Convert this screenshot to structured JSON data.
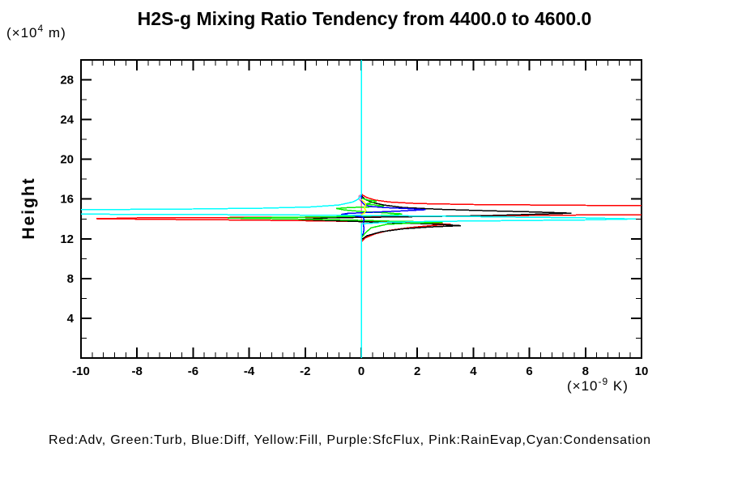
{
  "title": "H2S-g Mixing Ratio Tendency from 4400.0 to 4600.0",
  "y_axis_label": "Height",
  "y_axis_unit": {
    "base": "(×10",
    "sup": "4",
    "rest": " m)"
  },
  "x_axis_unit": {
    "base": "(×10",
    "sup": "-9",
    "rest": " K)"
  },
  "legend_text": "Red:Adv, Green:Turb, Blue:Diff, Yellow:Fill, Purple:SfcFlux, Pink:RainEvap,Cyan:Condensation",
  "colors": {
    "red": "#ff0000",
    "green": "#00ee00",
    "blue": "#0000ff",
    "yellow": "#ffff00",
    "purple": "#a020f0",
    "pink": "#ff69b4",
    "cyan": "#00ffff",
    "black": "#000000",
    "axis": "#000000",
    "background": "#ffffff"
  },
  "chart_data": {
    "type": "line",
    "title": "H2S-g Mixing Ratio Tendency from 4400.0 to 4600.0",
    "xlabel": "(×10⁻⁹ K)",
    "ylabel": "Height (×10⁴ m)",
    "xlim": [
      -10,
      10
    ],
    "ylim": [
      0,
      30
    ],
    "grid": false,
    "legend_position": "bottom",
    "x_ticks": [
      -10,
      -8,
      -6,
      -4,
      -2,
      0,
      2,
      4,
      6,
      8,
      10
    ],
    "x_tick_labels": [
      "-10",
      "-8",
      "-6",
      "-4",
      "-2",
      "0",
      "2",
      "4",
      "6",
      "8",
      "10"
    ],
    "x_minor_step": 0.4,
    "y_ticks": [
      4,
      8,
      12,
      16,
      20,
      24,
      28
    ],
    "y_tick_labels": [
      "4",
      "8",
      "12",
      "16",
      "20",
      "24",
      "28"
    ],
    "y_ticks_minor": [
      2,
      6,
      10,
      14,
      18,
      22,
      26,
      30
    ],
    "series": [
      {
        "name": "SfcFlux",
        "color": "#a020f0",
        "points": [
          [
            0,
            0
          ],
          [
            0,
            30
          ]
        ]
      },
      {
        "name": "RainEvap",
        "color": "#ff69b4",
        "points": [
          [
            0,
            0
          ],
          [
            0,
            15.75
          ],
          [
            -0.07,
            15.95
          ],
          [
            -0.08,
            16.3
          ],
          [
            0,
            16.45
          ],
          [
            0,
            30
          ]
        ]
      },
      {
        "name": "Adv",
        "color": "#ff0000",
        "points": [
          [
            0,
            0
          ],
          [
            0,
            11.7
          ],
          [
            0.15,
            12.1
          ],
          [
            0.5,
            12.5
          ],
          [
            1.0,
            12.85
          ],
          [
            1.8,
            13.15
          ],
          [
            2.6,
            13.35
          ],
          [
            3.2,
            13.45
          ],
          [
            2.2,
            13.6
          ],
          [
            0.5,
            13.72
          ],
          [
            -1.5,
            13.8
          ],
          [
            -4.0,
            13.88
          ],
          [
            -7.0,
            13.95
          ],
          [
            -9.45,
            14.02
          ],
          [
            -8.0,
            14.1
          ],
          [
            -4.0,
            14.15
          ],
          [
            0,
            14.2
          ],
          [
            4,
            14.3
          ],
          [
            8,
            14.4
          ],
          [
            13,
            14.45
          ],
          [
            13,
            15.3
          ],
          [
            8,
            15.37
          ],
          [
            4,
            15.45
          ],
          [
            2,
            15.55
          ],
          [
            1.0,
            15.7
          ],
          [
            0.5,
            15.9
          ],
          [
            0.2,
            16.15
          ],
          [
            0.05,
            16.4
          ],
          [
            0,
            16.55
          ],
          [
            0,
            30
          ]
        ]
      },
      {
        "name": "black",
        "color": "#000000",
        "points": [
          [
            0,
            0
          ],
          [
            0,
            11.9
          ],
          [
            0.2,
            12.3
          ],
          [
            0.7,
            12.7
          ],
          [
            1.5,
            13.0
          ],
          [
            2.5,
            13.2
          ],
          [
            3.55,
            13.32
          ],
          [
            2.5,
            13.5
          ],
          [
            1.0,
            13.62
          ],
          [
            -0.5,
            13.78
          ],
          [
            -2.2,
            13.95
          ],
          [
            -1.2,
            14.1
          ],
          [
            0.5,
            14.18
          ],
          [
            2.5,
            14.25
          ],
          [
            4.5,
            14.33
          ],
          [
            6.0,
            14.45
          ],
          [
            7.5,
            14.58
          ],
          [
            6.2,
            14.7
          ],
          [
            4.5,
            14.82
          ],
          [
            2.8,
            14.97
          ],
          [
            1.5,
            15.15
          ],
          [
            0.8,
            15.4
          ],
          [
            0.4,
            15.65
          ],
          [
            0.15,
            15.95
          ],
          [
            0.05,
            16.2
          ],
          [
            0,
            16.4
          ],
          [
            0,
            30
          ]
        ]
      },
      {
        "name": "Turb",
        "color": "#00ee00",
        "points": [
          [
            0,
            0
          ],
          [
            0,
            12.1
          ],
          [
            0.15,
            12.6
          ],
          [
            0.35,
            13.1
          ],
          [
            0.9,
            13.45
          ],
          [
            1.8,
            13.58
          ],
          [
            2.9,
            13.63
          ],
          [
            2.2,
            13.72
          ],
          [
            1.0,
            13.78
          ],
          [
            0,
            13.85
          ],
          [
            -1.5,
            13.95
          ],
          [
            -3.2,
            14.02
          ],
          [
            -4.77,
            14.08
          ],
          [
            -3.0,
            14.15
          ],
          [
            -1.0,
            14.22
          ],
          [
            0.3,
            14.3
          ],
          [
            1.1,
            14.4
          ],
          [
            1.45,
            14.5
          ],
          [
            0.8,
            14.62
          ],
          [
            0,
            14.75
          ],
          [
            -0.6,
            14.9
          ],
          [
            -0.9,
            15.05
          ],
          [
            -0.4,
            15.15
          ],
          [
            0.3,
            15.2
          ],
          [
            0.8,
            15.28
          ],
          [
            0.5,
            15.4
          ],
          [
            0.15,
            15.5
          ],
          [
            0.4,
            15.65
          ],
          [
            0.55,
            15.78
          ],
          [
            0.25,
            15.9
          ],
          [
            0.05,
            16.05
          ],
          [
            0,
            16.2
          ],
          [
            0,
            30
          ]
        ]
      },
      {
        "name": "Diff",
        "color": "#0000ff",
        "points": [
          [
            0,
            0
          ],
          [
            0,
            12.25
          ],
          [
            0.07,
            12.5
          ],
          [
            0.1,
            13.0
          ],
          [
            0.07,
            13.5
          ],
          [
            0.1,
            14.0
          ],
          [
            0.05,
            14.2
          ],
          [
            -0.3,
            14.35
          ],
          [
            -0.72,
            14.45
          ],
          [
            -0.5,
            14.55
          ],
          [
            0,
            14.62
          ],
          [
            0.6,
            14.7
          ],
          [
            1.4,
            14.8
          ],
          [
            2.3,
            14.93
          ],
          [
            1.6,
            15.05
          ],
          [
            0.8,
            15.15
          ],
          [
            0.35,
            15.25
          ],
          [
            0.12,
            15.4
          ],
          [
            0.05,
            15.6
          ],
          [
            0,
            15.8
          ],
          [
            0,
            30
          ]
        ]
      },
      {
        "name": "Condensation",
        "color": "#00ffff",
        "points": [
          [
            0,
            0
          ],
          [
            0,
            13.5
          ],
          [
            0.8,
            13.65
          ],
          [
            2.5,
            13.75
          ],
          [
            5,
            13.82
          ],
          [
            8,
            13.9
          ],
          [
            9.8,
            14.0
          ],
          [
            8,
            14.1
          ],
          [
            5,
            14.2
          ],
          [
            2,
            14.3
          ],
          [
            0,
            14.35
          ],
          [
            -4,
            14.42
          ],
          [
            -8,
            14.46
          ],
          [
            -13,
            14.5
          ],
          [
            -13,
            14.88
          ],
          [
            -10,
            14.93
          ],
          [
            -6,
            15.0
          ],
          [
            -3.5,
            15.08
          ],
          [
            -1.8,
            15.2
          ],
          [
            -0.8,
            15.4
          ],
          [
            -0.3,
            15.7
          ],
          [
            -0.1,
            16.0
          ],
          [
            0,
            16.45
          ],
          [
            0,
            30
          ]
        ]
      },
      {
        "name": "Fill",
        "color": "#ffff00",
        "points": [
          [
            0,
            14.45
          ],
          [
            0.12,
            14.6
          ],
          [
            0.16,
            14.9
          ],
          [
            0.1,
            15.1
          ],
          [
            0.16,
            15.35
          ],
          [
            0.14,
            15.6
          ],
          [
            0.06,
            15.8
          ],
          [
            0,
            15.95
          ]
        ]
      }
    ]
  }
}
